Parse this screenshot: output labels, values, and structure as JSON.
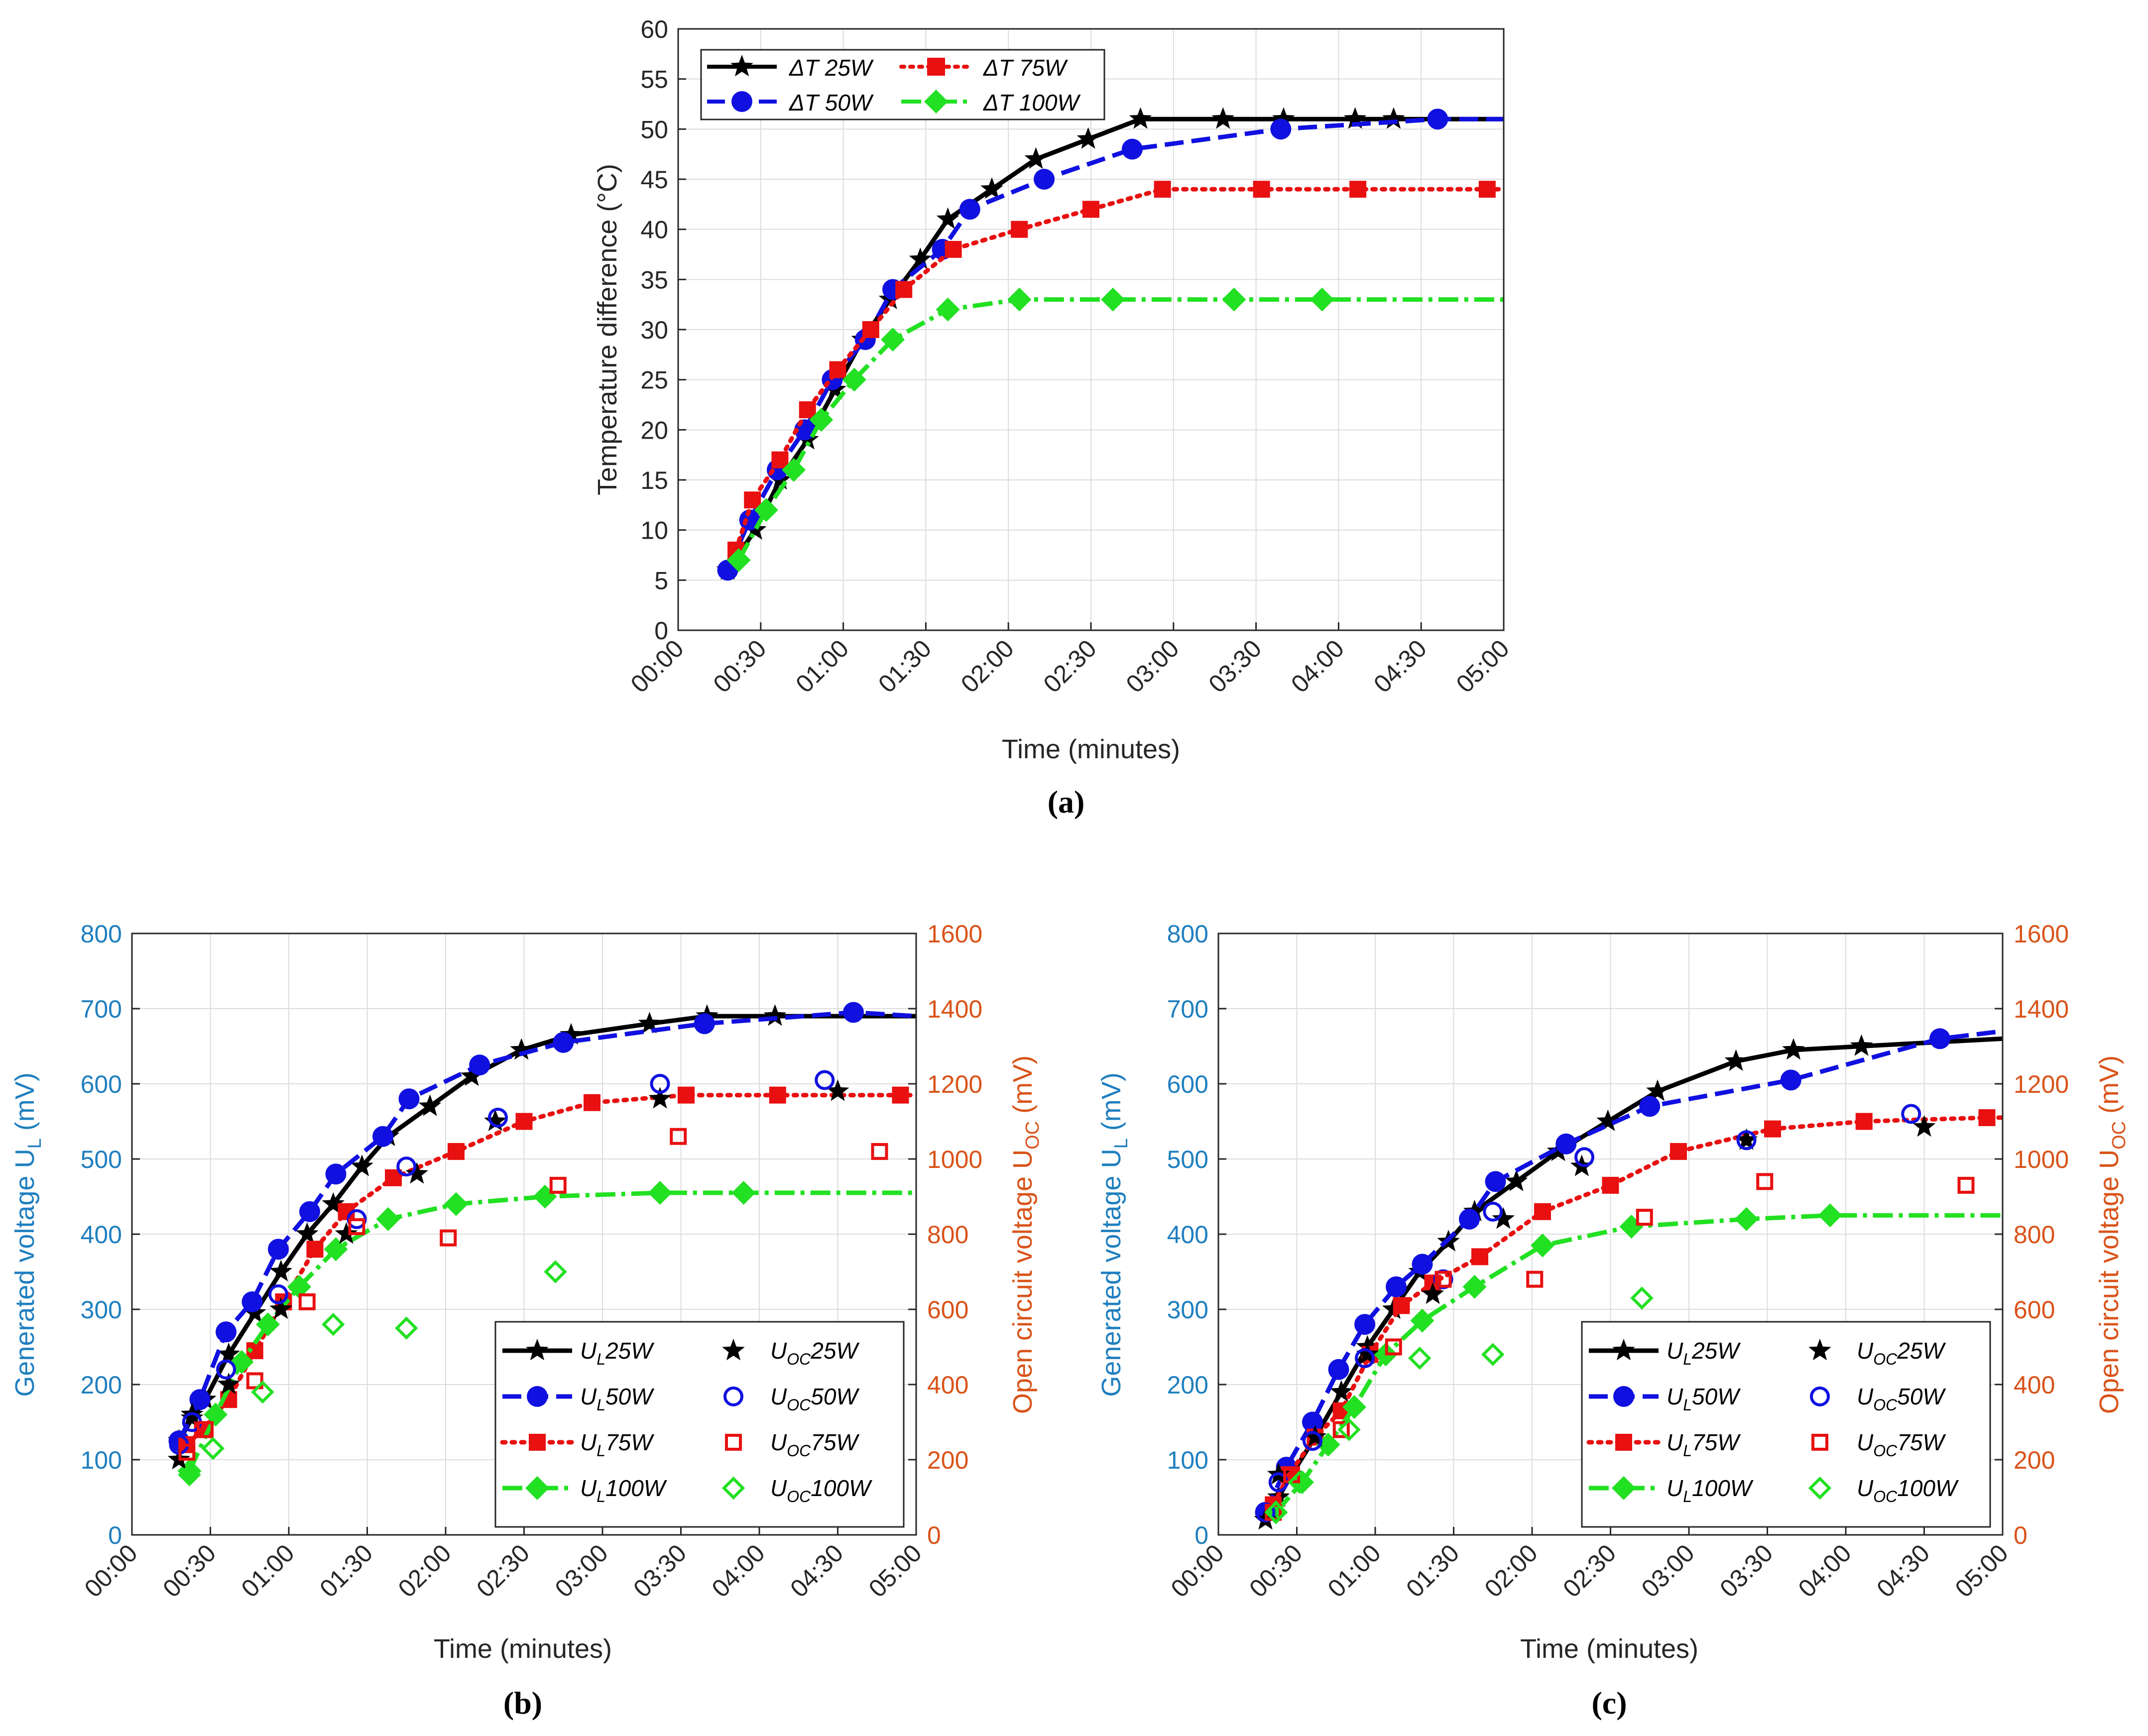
{
  "chart_data": [
    {
      "id": "a",
      "type": "line",
      "caption": "(a)",
      "xlabel": "Time (minutes)",
      "ylabel": "Temperature difference (°C)",
      "xlim": [
        0,
        300
      ],
      "ylim": [
        0,
        60
      ],
      "xticks": [
        0,
        30,
        60,
        90,
        120,
        150,
        180,
        210,
        240,
        270,
        300
      ],
      "xtick_labels": [
        "00:00",
        "00:30",
        "01:00",
        "01:30",
        "02:00",
        "02:30",
        "03:00",
        "03:30",
        "04:00",
        "04:30",
        "05:00"
      ],
      "yticks": [
        0,
        5,
        10,
        15,
        20,
        25,
        30,
        35,
        40,
        45,
        50,
        55,
        60
      ],
      "legend": {
        "position": "top-left",
        "columns": 2,
        "entries": [
          "ΔT 25W",
          "ΔT 75W",
          "ΔT 50W",
          "ΔT 100W"
        ]
      },
      "series": [
        {
          "name": "ΔT 25W",
          "color": "#000000",
          "style": "solid",
          "marker": "star",
          "x": [
            18,
            28,
            37,
            47,
            57,
            67,
            77,
            88,
            98,
            114,
            130,
            149,
            168,
            198,
            220,
            246,
            260,
            300
          ],
          "y": [
            6,
            10,
            15,
            19,
            24,
            29,
            33,
            37,
            41,
            44,
            47,
            49,
            51,
            51,
            51,
            51,
            51,
            51
          ]
        },
        {
          "name": "ΔT 50W",
          "color": "#1010e0",
          "style": "dashed",
          "marker": "circle",
          "x": [
            18,
            26,
            36,
            46,
            56,
            68,
            78,
            96,
            106,
            133,
            165,
            219,
            276,
            300
          ],
          "y": [
            6,
            11,
            16,
            20,
            25,
            29,
            34,
            38,
            42,
            45,
            48,
            50,
            51,
            51
          ]
        },
        {
          "name": "ΔT 75W",
          "color": "#e81010",
          "style": "dotted",
          "marker": "square",
          "x": [
            21,
            27,
            37,
            47,
            58,
            70,
            82,
            100,
            124,
            150,
            176,
            212,
            247,
            294,
            300
          ],
          "y": [
            8,
            13,
            17,
            22,
            26,
            30,
            34,
            38,
            40,
            42,
            44,
            44,
            44,
            44,
            44
          ]
        },
        {
          "name": "ΔT 100W",
          "color": "#22e022",
          "style": "dashdot",
          "marker": "diamond",
          "x": [
            22,
            32,
            42,
            52,
            64,
            78,
            98,
            124,
            158,
            202,
            234,
            300
          ],
          "y": [
            7,
            12,
            16,
            21,
            25,
            29,
            32,
            33,
            33,
            33,
            33,
            33
          ]
        }
      ]
    },
    {
      "id": "b",
      "type": "line",
      "caption": "(b)",
      "xlabel": "Time (minutes)",
      "ylabel_left": "Generated voltage U_L (mV)",
      "ylabel_right": "Open circuit voltage U_OC (mV)",
      "xlim": [
        0,
        300
      ],
      "ylim_left": [
        0,
        800
      ],
      "ylim_right": [
        0,
        1600
      ],
      "xticks": [
        0,
        30,
        60,
        90,
        120,
        150,
        180,
        210,
        240,
        270,
        300
      ],
      "xtick_labels": [
        "00:00",
        "00:30",
        "01:00",
        "01:30",
        "02:00",
        "02:30",
        "03:00",
        "03:30",
        "04:00",
        "04:30",
        "05:00"
      ],
      "yticks_left": [
        0,
        100,
        200,
        300,
        400,
        500,
        600,
        700,
        800
      ],
      "yticks_right": [
        0,
        200,
        400,
        600,
        800,
        1000,
        1200,
        1400,
        1600
      ],
      "legend": {
        "position": "bottom-right",
        "columns": 2,
        "entries": [
          "UL25W",
          "UOC25W",
          "UL50W",
          "UOC50W",
          "UL75W",
          "UOC75W",
          "UL100W",
          "UOC100W"
        ]
      },
      "series": [
        {
          "name": "UL25W",
          "axis": "left",
          "color": "#000000",
          "style": "solid",
          "marker": "star",
          "x": [
            18,
            23,
            28,
            37,
            47,
            57,
            67,
            77,
            88,
            98,
            114,
            130,
            149,
            168,
            198,
            220,
            246,
            300
          ],
          "y": [
            125,
            155,
            180,
            240,
            295,
            350,
            400,
            440,
            490,
            530,
            570,
            610,
            645,
            665,
            680,
            690,
            690,
            690
          ]
        },
        {
          "name": "UL50W",
          "axis": "left",
          "color": "#1010e0",
          "style": "dashed",
          "marker": "circle",
          "x": [
            18,
            26,
            36,
            46,
            56,
            68,
            78,
            96,
            106,
            133,
            165,
            219,
            276,
            300
          ],
          "y": [
            125,
            180,
            270,
            310,
            380,
            430,
            480,
            530,
            580,
            625,
            655,
            680,
            695,
            690
          ]
        },
        {
          "name": "UL75W",
          "axis": "left",
          "color": "#e81010",
          "style": "dotted",
          "marker": "square",
          "x": [
            21,
            27,
            37,
            47,
            58,
            70,
            82,
            100,
            124,
            150,
            176,
            212,
            247,
            294,
            300
          ],
          "y": [
            120,
            140,
            180,
            245,
            310,
            380,
            430,
            475,
            510,
            550,
            575,
            585,
            585,
            585,
            585
          ]
        },
        {
          "name": "UL100W",
          "axis": "left",
          "color": "#22e022",
          "style": "dashdot",
          "marker": "diamond",
          "x": [
            22,
            32,
            42,
            52,
            64,
            78,
            98,
            124,
            158,
            202,
            234,
            300
          ],
          "y": [
            85,
            160,
            230,
            280,
            330,
            380,
            420,
            440,
            450,
            455,
            455,
            455
          ]
        },
        {
          "name": "UOC25W",
          "axis": "right",
          "color": "#000000",
          "marker": "star",
          "filled": true,
          "line": false,
          "x": [
            18,
            23,
            37,
            57,
            82,
            109,
            139,
            202,
            270
          ],
          "y": [
            200,
            320,
            400,
            600,
            800,
            960,
            1100,
            1160,
            1180
          ]
        },
        {
          "name": "UOC50W",
          "axis": "right",
          "color": "#1010e0",
          "marker": "circle",
          "filled": false,
          "line": false,
          "x": [
            18,
            23,
            36,
            56,
            86,
            105,
            140,
            202,
            265
          ],
          "y": [
            240,
            300,
            440,
            640,
            840,
            980,
            1110,
            1200,
            1210
          ]
        },
        {
          "name": "UOC75W",
          "axis": "right",
          "color": "#e81010",
          "marker": "square",
          "filled": false,
          "line": false,
          "x": [
            21,
            28,
            47,
            67,
            86,
            121,
            163,
            209,
            286
          ],
          "y": [
            220,
            280,
            410,
            620,
            820,
            790,
            930,
            1060,
            1020
          ]
        },
        {
          "name": "UOC100W",
          "axis": "right",
          "color": "#22e022",
          "marker": "diamond",
          "filled": false,
          "line": false,
          "x": [
            22,
            31,
            50,
            77,
            105,
            162
          ],
          "y": [
            160,
            230,
            380,
            560,
            550,
            700
          ]
        }
      ]
    },
    {
      "id": "c",
      "type": "line",
      "caption": "(c)",
      "xlabel": "Time (minutes)",
      "ylabel_left": "Generated voltage U_L (mV)",
      "ylabel_right": "Open circuit voltage U_OC (mV)",
      "xlim": [
        0,
        300
      ],
      "ylim_left": [
        0,
        800
      ],
      "ylim_right": [
        0,
        1600
      ],
      "xticks": [
        0,
        30,
        60,
        90,
        120,
        150,
        180,
        210,
        240,
        270,
        300
      ],
      "xtick_labels": [
        "00:00",
        "00:30",
        "01:00",
        "01:30",
        "02:00",
        "02:30",
        "03:00",
        "03:30",
        "04:00",
        "04:30",
        "05:00"
      ],
      "yticks_left": [
        0,
        100,
        200,
        300,
        400,
        500,
        600,
        700,
        800
      ],
      "yticks_right": [
        0,
        200,
        400,
        600,
        800,
        1000,
        1200,
        1400,
        1600
      ],
      "legend": {
        "position": "bottom-right",
        "columns": 2,
        "entries": [
          "UL25W",
          "UOC25W",
          "UL50W",
          "UOC50W",
          "UL75W",
          "UOC75W",
          "UL100W",
          "UOC100W"
        ]
      },
      "series": [
        {
          "name": "UL25W",
          "axis": "left",
          "color": "#000000",
          "style": "solid",
          "marker": "star",
          "x": [
            18,
            23,
            28,
            37,
            47,
            57,
            67,
            77,
            88,
            98,
            114,
            130,
            149,
            168,
            198,
            220,
            246,
            300
          ],
          "y": [
            20,
            50,
            80,
            130,
            190,
            250,
            300,
            350,
            390,
            430,
            470,
            510,
            550,
            590,
            630,
            645,
            650,
            660
          ]
        },
        {
          "name": "UL50W",
          "axis": "left",
          "color": "#1010e0",
          "style": "dashed",
          "marker": "circle",
          "x": [
            18,
            26,
            36,
            46,
            56,
            68,
            78,
            96,
            106,
            133,
            165,
            219,
            276,
            300
          ],
          "y": [
            30,
            90,
            150,
            220,
            280,
            330,
            360,
            420,
            470,
            520,
            570,
            605,
            660,
            670
          ]
        },
        {
          "name": "UL75W",
          "axis": "left",
          "color": "#e81010",
          "style": "dotted",
          "marker": "square",
          "x": [
            21,
            27,
            37,
            47,
            58,
            70,
            82,
            100,
            124,
            150,
            176,
            212,
            247,
            294,
            300
          ],
          "y": [
            40,
            80,
            130,
            165,
            240,
            305,
            335,
            370,
            430,
            465,
            510,
            540,
            550,
            555,
            555
          ]
        },
        {
          "name": "UL100W",
          "axis": "left",
          "color": "#22e022",
          "style": "dashdot",
          "marker": "diamond",
          "x": [
            22,
            32,
            42,
            52,
            64,
            78,
            98,
            124,
            158,
            202,
            234,
            300
          ],
          "y": [
            30,
            70,
            120,
            170,
            240,
            285,
            330,
            385,
            410,
            420,
            425,
            425
          ]
        },
        {
          "name": "UOC25W",
          "axis": "right",
          "color": "#000000",
          "marker": "star",
          "filled": true,
          "line": false,
          "x": [
            18,
            23,
            37,
            57,
            82,
            109,
            139,
            202,
            270
          ],
          "y": [
            40,
            160,
            260,
            480,
            640,
            840,
            980,
            1050,
            1085
          ]
        },
        {
          "name": "UOC50W",
          "axis": "right",
          "color": "#1010e0",
          "marker": "circle",
          "filled": false,
          "line": false,
          "x": [
            18,
            23,
            36,
            56,
            86,
            105,
            140,
            202,
            265
          ],
          "y": [
            60,
            140,
            250,
            470,
            680,
            860,
            1005,
            1050,
            1120
          ]
        },
        {
          "name": "UOC75W",
          "axis": "right",
          "color": "#e81010",
          "marker": "square",
          "filled": false,
          "line": false,
          "x": [
            21,
            28,
            47,
            67,
            86,
            121,
            163,
            209,
            286
          ],
          "y": [
            60,
            160,
            280,
            500,
            680,
            680,
            845,
            940,
            930
          ]
        },
        {
          "name": "UOC100W",
          "axis": "right",
          "color": "#22e022",
          "marker": "diamond",
          "filled": false,
          "line": false,
          "x": [
            22,
            31,
            50,
            77,
            105,
            162
          ],
          "y": [
            60,
            140,
            280,
            470,
            480,
            630
          ]
        }
      ]
    }
  ],
  "colors": {
    "left_axis": "#1f7fbf",
    "right_axis": "#d95319",
    "grid": "#dcdcdc"
  }
}
